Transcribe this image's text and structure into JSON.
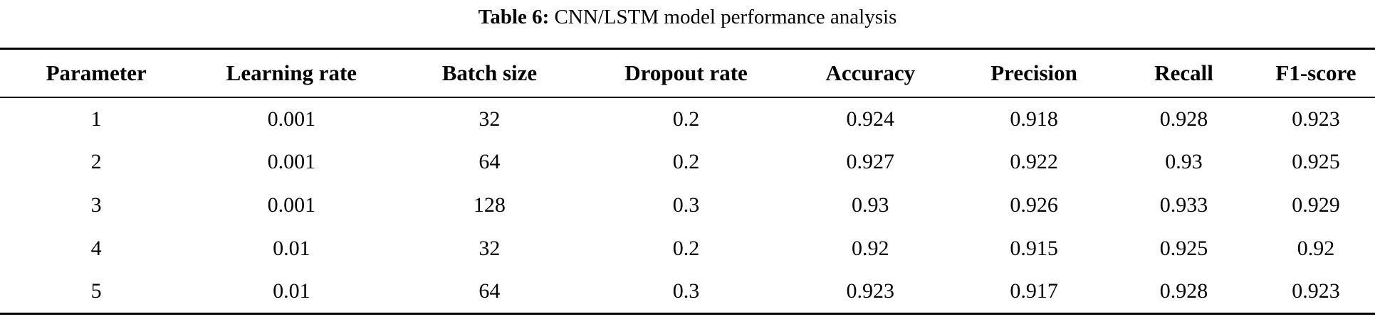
{
  "table": {
    "caption": {
      "label": "Table 6:",
      "text": " CNN/LSTM model performance analysis"
    },
    "columns": [
      "Parameter",
      "Learning rate",
      "Batch size",
      "Dropout rate",
      "Accuracy",
      "Precision",
      "Recall",
      "F1-score"
    ],
    "rows": [
      [
        "1",
        "0.001",
        "32",
        "0.2",
        "0.924",
        "0.918",
        "0.928",
        "0.923"
      ],
      [
        "2",
        "0.001",
        "64",
        "0.2",
        "0.927",
        "0.922",
        "0.93",
        "0.925"
      ],
      [
        "3",
        "0.001",
        "128",
        "0.3",
        "0.93",
        "0.926",
        "0.933",
        "0.929"
      ],
      [
        "4",
        "0.01",
        "32",
        "0.2",
        "0.92",
        "0.915",
        "0.925",
        "0.92"
      ],
      [
        "5",
        "0.01",
        "64",
        "0.3",
        "0.923",
        "0.917",
        "0.928",
        "0.923"
      ]
    ],
    "colors": {
      "text": "#000000",
      "background": "#ffffff",
      "rule": "#000000"
    }
  }
}
